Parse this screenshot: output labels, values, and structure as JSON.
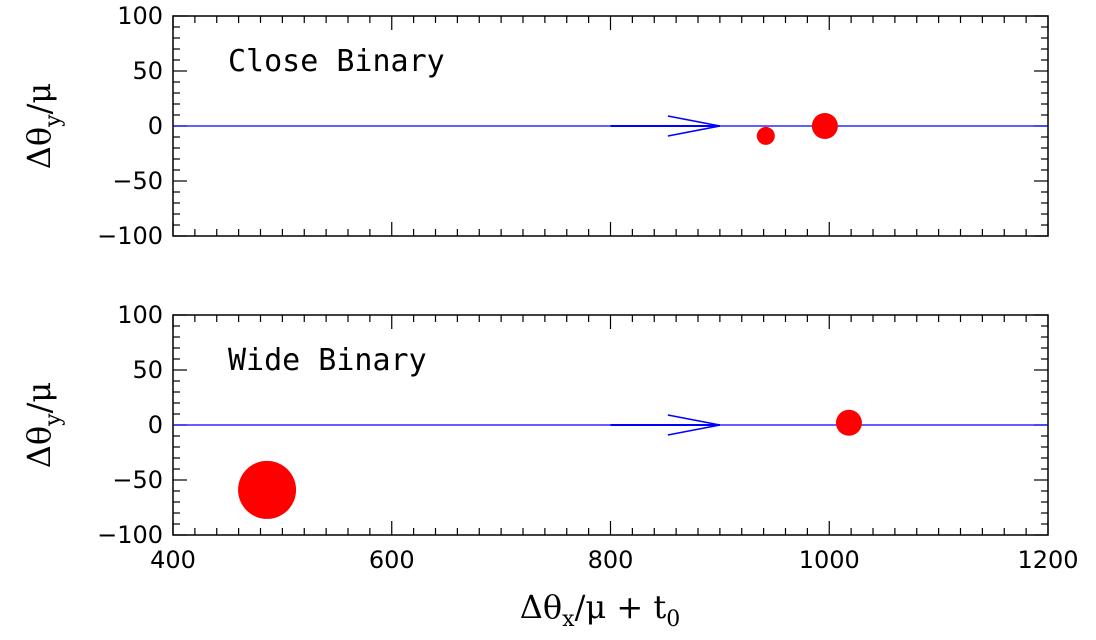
{
  "chart_data": [
    {
      "type": "scatter",
      "title": "Close Binary",
      "xlabel": "",
      "ylabel": {
        "main": "Δθ",
        "sub": "y",
        "tail": "/μ"
      },
      "xlim": [
        400,
        1200
      ],
      "ylim": [
        -100,
        100
      ],
      "x_ticks": [
        400,
        600,
        800,
        1000,
        1200
      ],
      "y_ticks": [
        100,
        50,
        0,
        -50,
        -100
      ],
      "x_ticks_labeled": false,
      "trajectory": {
        "y": 0,
        "color": "#0000ff",
        "arrow_from_x": 800,
        "arrow_to_x": 900
      },
      "points": [
        {
          "x": 942,
          "y": -9,
          "size": "small",
          "color": "#ff0000"
        },
        {
          "x": 996,
          "y": 0,
          "size": "medium",
          "color": "#ff0000"
        }
      ]
    },
    {
      "type": "scatter",
      "title": "Wide Binary",
      "xlabel": {
        "main": "Δθ",
        "sub": "x",
        "tail": "/μ + t",
        "sub2": "0"
      },
      "ylabel": {
        "main": "Δθ",
        "sub": "y",
        "tail": "/μ"
      },
      "xlim": [
        400,
        1200
      ],
      "ylim": [
        -100,
        100
      ],
      "x_ticks": [
        400,
        600,
        800,
        1000,
        1200
      ],
      "y_ticks": [
        100,
        50,
        0,
        -50,
        -100
      ],
      "x_ticks_labeled": true,
      "trajectory": {
        "y": 0,
        "color": "#0000ff",
        "arrow_from_x": 800,
        "arrow_to_x": 900
      },
      "points": [
        {
          "x": 1018,
          "y": 2,
          "size": "medium",
          "color": "#ff0000"
        },
        {
          "x": 486,
          "y": -59,
          "size": "large",
          "color": "#ff0000"
        }
      ]
    }
  ]
}
